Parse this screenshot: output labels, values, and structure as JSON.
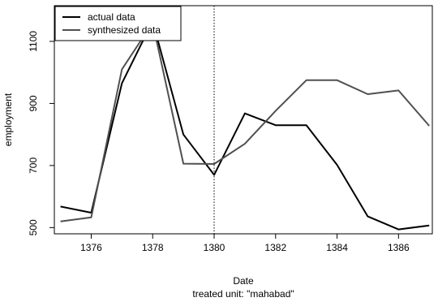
{
  "chart_data": {
    "type": "line",
    "xlabel": "Date",
    "ylabel": "employment",
    "subtitle": "treated unit:  \"mahabad\"",
    "xlim": [
      1374.8,
      1387.1
    ],
    "ylim": [
      480,
      1215
    ],
    "xticks": [
      1376,
      1378,
      1380,
      1382,
      1384,
      1386
    ],
    "yticks": [
      500,
      700,
      900,
      1100
    ],
    "treatment_x": 1380,
    "legend": "top-left",
    "grid": false,
    "x": [
      1375,
      1376,
      1377,
      1378,
      1379,
      1380,
      1381,
      1382,
      1383,
      1384,
      1385,
      1386,
      1387
    ],
    "series": [
      {
        "name": "actual data",
        "color": "#000000",
        "values": [
          568,
          548,
          965,
          1165,
          800,
          670,
          868,
          830,
          830,
          702,
          536,
          494,
          507
        ]
      },
      {
        "name": "synthesized data",
        "color": "#505050",
        "values": [
          520,
          533,
          1010,
          1160,
          706,
          705,
          770,
          876,
          975,
          975,
          930,
          942,
          828
        ]
      }
    ]
  }
}
